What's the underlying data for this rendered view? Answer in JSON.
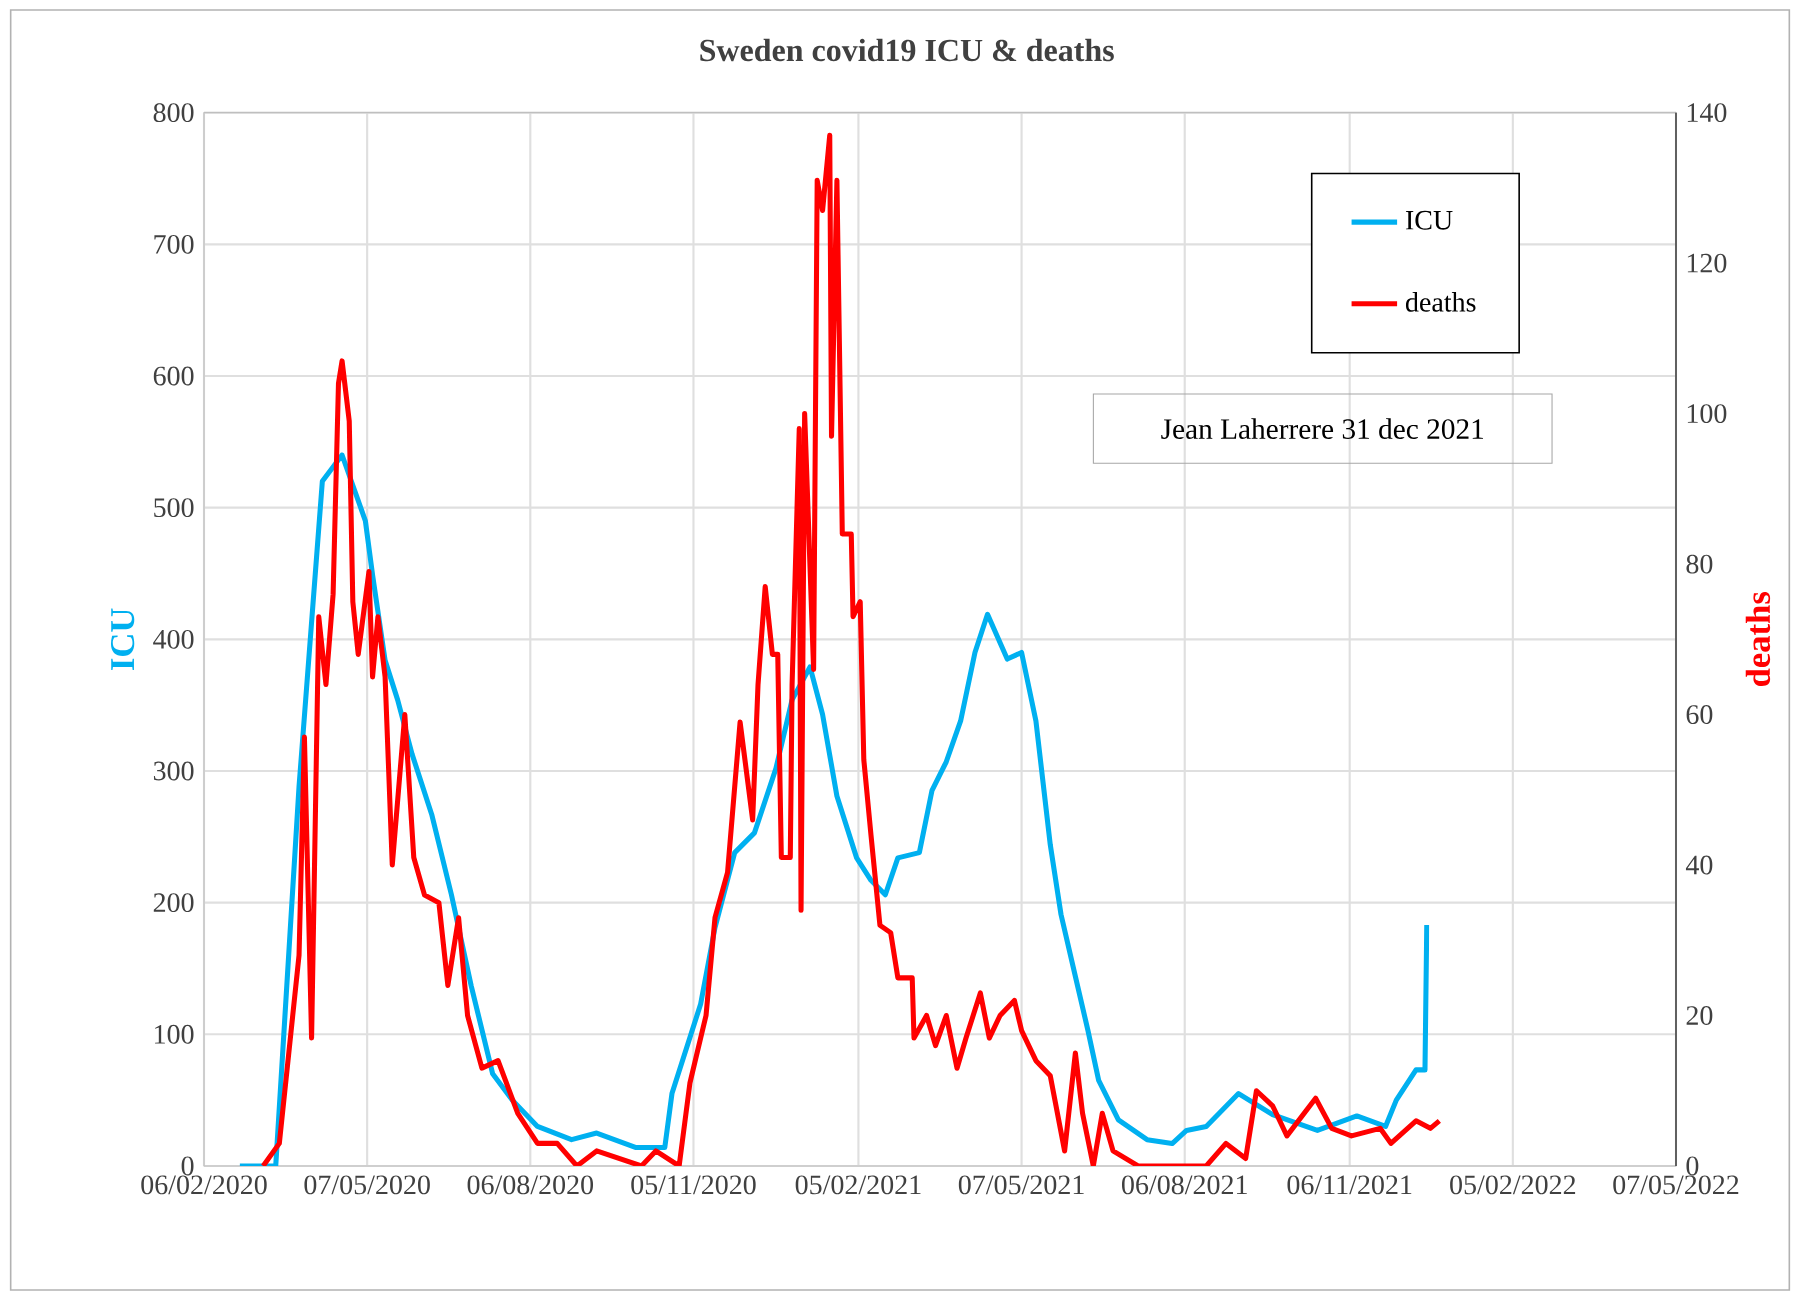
{
  "chart_data": {
    "type": "line",
    "title": "Sweden covid19 ICU & deaths",
    "ylabel": "ICU",
    "y2label": "deaths",
    "xlim": [
      "2020-02-06",
      "2022-05-07"
    ],
    "xticks": [
      {
        "value": "2020-02-06",
        "label": "06/02/2020"
      },
      {
        "value": "2020-05-07",
        "label": "07/05/2020"
      },
      {
        "value": "2020-08-06",
        "label": "06/08/2020"
      },
      {
        "value": "2020-11-05",
        "label": "05/11/2020"
      },
      {
        "value": "2021-02-05",
        "label": "05/02/2021"
      },
      {
        "value": "2021-05-07",
        "label": "07/05/2021"
      },
      {
        "value": "2021-08-06",
        "label": "06/08/2021"
      },
      {
        "value": "2021-11-06",
        "label": "06/11/2021"
      },
      {
        "value": "2022-02-05",
        "label": "05/02/2022"
      },
      {
        "value": "2022-05-07",
        "label": "07/05/2022"
      }
    ],
    "ylim": [
      0,
      800
    ],
    "yticks": [
      0,
      100,
      200,
      300,
      400,
      500,
      600,
      700,
      800
    ],
    "y2lim": [
      0,
      140
    ],
    "y2ticks": [
      0,
      20,
      40,
      60,
      80,
      100,
      120,
      140
    ],
    "grid": true,
    "legend": "top right",
    "line_style": "solid",
    "marker": "none",
    "annotations": [
      "Jean Laherrere 31 dec 2021"
    ],
    "series": [
      {
        "name": "ICU",
        "color": "#00b0f0",
        "x": [
          "2020-02-26",
          "2020-03-17",
          "2020-03-30",
          "2020-04-12",
          "2020-04-23",
          "2020-05-06",
          "2020-05-10",
          "2020-05-17",
          "2020-05-24",
          "2020-06-01",
          "2020-06-12",
          "2020-06-23",
          "2020-07-04",
          "2020-07-16",
          "2020-07-27",
          "2020-08-10",
          "2020-08-29",
          "2020-09-12",
          "2020-10-04",
          "2020-10-20",
          "2020-10-24",
          "2020-11-09",
          "2020-11-17",
          "2020-11-28",
          "2020-12-09",
          "2020-12-21",
          "2020-12-30",
          "2021-01-09",
          "2021-01-16",
          "2021-01-24",
          "2021-02-04",
          "2021-02-12",
          "2021-02-20",
          "2021-02-27",
          "2021-03-11",
          "2021-03-18",
          "2021-03-26",
          "2021-04-03",
          "2021-04-11",
          "2021-04-18",
          "2021-04-29",
          "2021-05-07",
          "2021-05-15",
          "2021-05-23",
          "2021-05-29",
          "2021-06-06",
          "2021-06-13",
          "2021-06-19",
          "2021-06-30",
          "2021-07-16",
          "2021-07-30",
          "2021-08-07",
          "2021-08-18",
          "2021-09-05",
          "2021-09-24",
          "2021-10-19",
          "2021-11-10",
          "2021-11-26",
          "2021-12-02",
          "2021-12-13",
          "2021-12-18",
          "2021-12-19"
        ],
        "values": [
          0,
          0,
          288,
          520,
          540,
          490,
          449,
          384,
          354,
          313,
          267,
          206,
          137,
          70,
          50,
          30,
          20,
          25,
          14,
          14,
          55,
          123,
          181,
          238,
          253,
          302,
          354,
          379,
          343,
          281,
          234,
          217,
          206,
          234,
          238,
          285,
          307,
          338,
          390,
          419,
          385,
          390,
          338,
          244,
          191,
          144,
          103,
          65,
          35,
          20,
          17,
          27,
          30,
          55,
          39,
          27,
          38,
          30,
          50,
          73,
          73,
          183
        ]
      },
      {
        "name": "deaths",
        "color": "#ff0000",
        "axis": "y2",
        "x": [
          "2020-03-10",
          "2020-03-19",
          "2020-03-30",
          "2020-04-02",
          "2020-04-06",
          "2020-04-10",
          "2020-04-14",
          "2020-04-18",
          "2020-04-21",
          "2020-04-23",
          "2020-04-27",
          "2020-04-29",
          "2020-05-02",
          "2020-05-08",
          "2020-05-10",
          "2020-05-13",
          "2020-05-17",
          "2020-05-21",
          "2020-05-28",
          "2020-06-02",
          "2020-06-08",
          "2020-06-16",
          "2020-06-21",
          "2020-06-27",
          "2020-07-02",
          "2020-07-10",
          "2020-07-19",
          "2020-07-30",
          "2020-08-10",
          "2020-08-21",
          "2020-09-01",
          "2020-09-12",
          "2020-10-07",
          "2020-10-15",
          "2020-10-28",
          "2020-11-03",
          "2020-11-12",
          "2020-11-17",
          "2020-11-24",
          "2020-12-01",
          "2020-12-08",
          "2020-12-11",
          "2020-12-15",
          "2020-12-19",
          "2020-12-22",
          "2020-12-24",
          "2020-12-29",
          "2020-12-30",
          "2021-01-03",
          "2021-01-04",
          "2021-01-06",
          "2021-01-11",
          "2021-01-13",
          "2021-01-16",
          "2021-01-20",
          "2021-01-21",
          "2021-01-24",
          "2021-01-27",
          "2021-02-01",
          "2021-02-02",
          "2021-02-06",
          "2021-02-08",
          "2021-02-12",
          "2021-02-17",
          "2021-02-23",
          "2021-02-27",
          "2021-03-07",
          "2021-03-08",
          "2021-03-15",
          "2021-03-20",
          "2021-03-26",
          "2021-04-01",
          "2021-04-06",
          "2021-04-14",
          "2021-04-19",
          "2021-04-25",
          "2021-05-03",
          "2021-05-07",
          "2021-05-15",
          "2021-05-23",
          "2021-05-31",
          "2021-06-06",
          "2021-06-10",
          "2021-06-16",
          "2021-06-21",
          "2021-06-27",
          "2021-07-11",
          "2021-08-07",
          "2021-08-18",
          "2021-08-29",
          "2021-09-09",
          "2021-09-15",
          "2021-09-24",
          "2021-10-02",
          "2021-10-18",
          "2021-10-27",
          "2021-11-07",
          "2021-11-23",
          "2021-11-29",
          "2021-12-13",
          "2021-12-21",
          "2021-12-26"
        ],
        "values": [
          0,
          3,
          28,
          57,
          17,
          73,
          64,
          76,
          104,
          107,
          99,
          75,
          68,
          79,
          65,
          73,
          65,
          40,
          60,
          41,
          36,
          35,
          24,
          33,
          20,
          13,
          14,
          7,
          3,
          3,
          0,
          2,
          0,
          2,
          0,
          11,
          20,
          33,
          39,
          59,
          46,
          64,
          77,
          68,
          68,
          41,
          41,
          64,
          98,
          34,
          100,
          66,
          131,
          127,
          137,
          97,
          131,
          84,
          84,
          73,
          75,
          54,
          44,
          32,
          31,
          25,
          25,
          17,
          20,
          16,
          20,
          13,
          17,
          23,
          17,
          20,
          22,
          18,
          14,
          12,
          2,
          15,
          7,
          0,
          7,
          2,
          0,
          0,
          0,
          3,
          1,
          10,
          8,
          4,
          9,
          5,
          4,
          5,
          3,
          6,
          5,
          6
        ]
      }
    ]
  }
}
